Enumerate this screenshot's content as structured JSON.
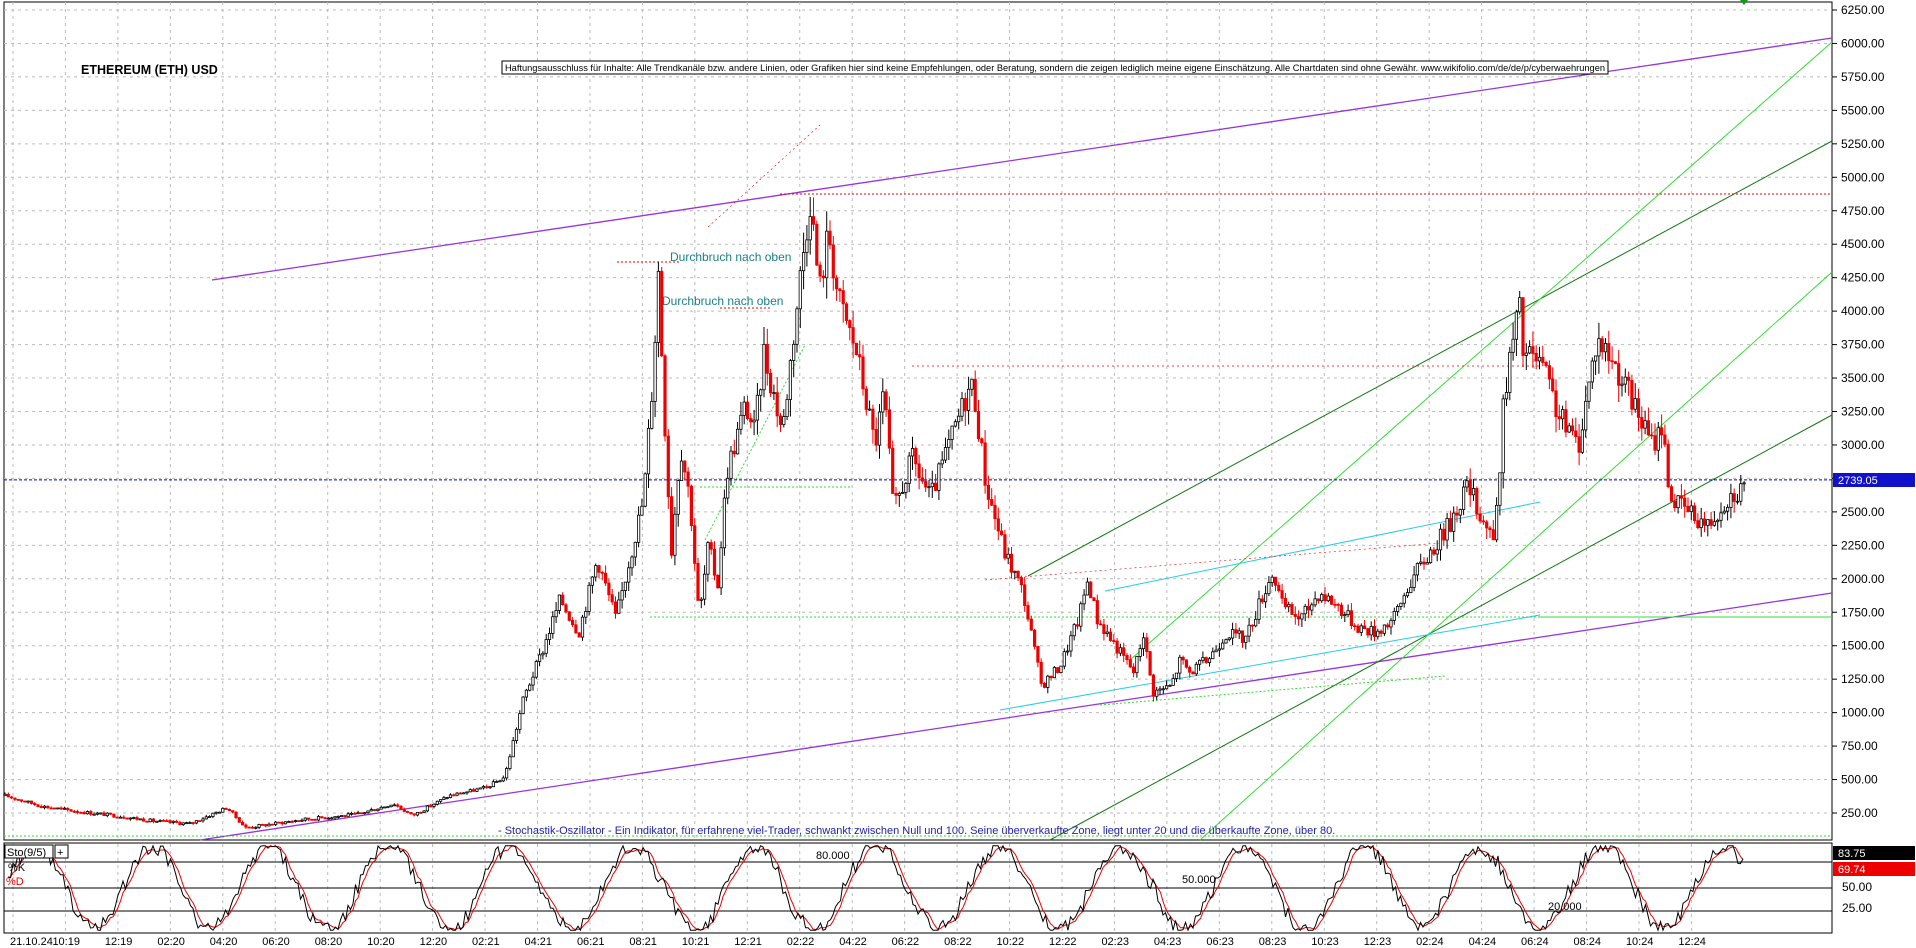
{
  "chart_data": {
    "type": "candlestick",
    "title": "ETHEREUM (ETH) USD",
    "disclaimer": "Haftungsausschluss für Inhalte: Alle Trendkanäle bzw. andere Linien, oder Grafiken hier sind keine Empfehlungen, oder Beratung, sondern die zeigen lediglich meine eigene Einschätzung. Alle Chartdaten sind ohne Gewähr.  www.wikifolio.com/de/de/p/cyberwaehrungen",
    "y_ticks": [
      "6250.00",
      "6000.00",
      "5750.00",
      "5500.00",
      "5250.00",
      "5000.00",
      "4750.00",
      "4500.00",
      "4250.00",
      "4000.00",
      "3750.00",
      "3500.00",
      "3250.00",
      "3000.00",
      "2750.00",
      "2500.00",
      "2250.00",
      "2000.00",
      "1750.00",
      "1500.00",
      "1250.00",
      "1000.00",
      "750.00",
      "500.00",
      "250.00"
    ],
    "ylim": [
      0,
      6300
    ],
    "x_ticks": [
      "21.10.24",
      "10:19",
      "12:19",
      "02:20",
      "04:20",
      "06:20",
      "08:20",
      "10:20",
      "12:20",
      "02:21",
      "04:21",
      "06:21",
      "08:21",
      "10:21",
      "12:21",
      "02:22",
      "04:22",
      "06:22",
      "08:22",
      "10:22",
      "12:22",
      "02:23",
      "04:23",
      "06:23",
      "08:23",
      "10:23",
      "12:23",
      "02:24",
      "04:24",
      "06:24",
      "08:24",
      "10:24",
      "12:24"
    ],
    "last_price": "2739.05",
    "price_path": [
      [
        0,
        380
      ],
      [
        2,
        300
      ],
      [
        4,
        260
      ],
      [
        6,
        230
      ],
      [
        8,
        190
      ],
      [
        10,
        170
      ],
      [
        12,
        290
      ],
      [
        13,
        140
      ],
      [
        16,
        200
      ],
      [
        19,
        240
      ],
      [
        21,
        320
      ],
      [
        22,
        230
      ],
      [
        24,
        380
      ],
      [
        26,
        440
      ],
      [
        27,
        520
      ],
      [
        28,
        1100
      ],
      [
        29,
        1450
      ],
      [
        30,
        1850
      ],
      [
        31,
        1600
      ],
      [
        32,
        2150
      ],
      [
        33,
        1700
      ],
      [
        34,
        2300
      ],
      [
        34.5,
        2600
      ],
      [
        35,
        3500
      ],
      [
        35.3,
        4300
      ],
      [
        35.6,
        3300
      ],
      [
        36,
        2200
      ],
      [
        36.5,
        3000
      ],
      [
        37,
        2600
      ],
      [
        37.5,
        1700
      ],
      [
        38,
        2250
      ],
      [
        38.5,
        1950
      ],
      [
        39,
        2800
      ],
      [
        40,
        3300
      ],
      [
        40.5,
        3100
      ],
      [
        41,
        3700
      ],
      [
        42,
        3100
      ],
      [
        43,
        4300
      ],
      [
        43.5,
        4850
      ],
      [
        44,
        4150
      ],
      [
        44.5,
        4600
      ],
      [
        45,
        4100
      ],
      [
        46,
        3700
      ],
      [
        47,
        3000
      ],
      [
        47.5,
        3400
      ],
      [
        48,
        2500
      ],
      [
        49,
        2900
      ],
      [
        50,
        2600
      ],
      [
        51,
        3000
      ],
      [
        52,
        3400
      ],
      [
        52.3,
        3450
      ],
      [
        53,
        2700
      ],
      [
        54,
        2200
      ],
      [
        55,
        1900
      ],
      [
        56,
        1200
      ],
      [
        57,
        1350
      ],
      [
        58,
        1700
      ],
      [
        58.5,
        2000
      ],
      [
        59,
        1700
      ],
      [
        60,
        1500
      ],
      [
        61,
        1300
      ],
      [
        61.5,
        1600
      ],
      [
        62,
        1150
      ],
      [
        63,
        1200
      ],
      [
        63.5,
        1400
      ],
      [
        64,
        1300
      ],
      [
        65,
        1400
      ],
      [
        66,
        1600
      ],
      [
        67,
        1550
      ],
      [
        68,
        1900
      ],
      [
        68.5,
        2050
      ],
      [
        69,
        1800
      ],
      [
        70,
        1700
      ],
      [
        71,
        1900
      ],
      [
        72,
        1800
      ],
      [
        73,
        1650
      ],
      [
        74,
        1600
      ],
      [
        75,
        1700
      ],
      [
        76,
        2000
      ],
      [
        77,
        2200
      ],
      [
        78,
        2400
      ],
      [
        79,
        2700
      ],
      [
        80,
        2400
      ],
      [
        80.5,
        2300
      ],
      [
        81,
        3400
      ],
      [
        81.8,
        4050
      ],
      [
        82,
        3700
      ],
      [
        83,
        3600
      ],
      [
        84,
        3200
      ],
      [
        85,
        3000
      ],
      [
        86,
        3800
      ],
      [
        87,
        3600
      ],
      [
        88,
        3300
      ],
      [
        89,
        3000
      ],
      [
        89.5,
        3150
      ],
      [
        90,
        2600
      ],
      [
        91,
        2500
      ],
      [
        92,
        2400
      ],
      [
        93,
        2600
      ],
      [
        94,
        2700
      ]
    ],
    "stochastic": {
      "label": "Sto(9/5)",
      "k_label": "%K",
      "d_label": "%D",
      "k_value": "83.75",
      "d_value": "69.74",
      "levels": [
        "80.000",
        "50.000",
        "20.000"
      ],
      "axis": [
        "50.00",
        "25.00"
      ]
    },
    "annotations": [
      "Durchbruch nach oben",
      "Durchbruch nach oben"
    ],
    "stoch_description": "- Stochastik-Oszillator - Ein Indikator, für erfahrene viel-Trader, schwankt zwischen Null und 100. Seine überverkaufte Zone, liegt unter 20 und die überkaufte Zone, über 80.",
    "colors": {
      "purple": "#9933dd",
      "dark_green": "#117711",
      "light_green": "#33dd33",
      "cyan": "#22ccee",
      "red": "#ee0000",
      "price_line": "#0000cc",
      "k_line": "#000000",
      "d_line": "#ee0000"
    }
  }
}
